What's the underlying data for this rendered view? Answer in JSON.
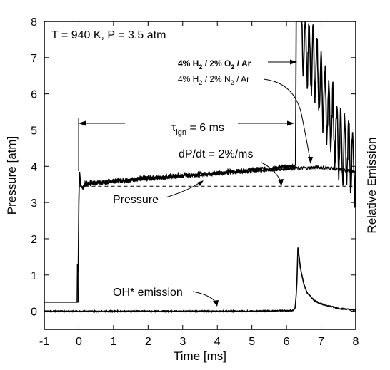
{
  "chart_data": {
    "type": "line",
    "xlabel": "Time [ms]",
    "ylabel": "Pressure [atm]",
    "ylabel_right": "Relative Emission",
    "xlim": [
      -1,
      8
    ],
    "ylim": [
      -0.5,
      8
    ],
    "x_ticks": [
      -1,
      0,
      1,
      2,
      3,
      4,
      5,
      6,
      7,
      8
    ],
    "y_ticks": [
      0,
      1,
      2,
      3,
      4,
      5,
      6,
      7,
      8
    ],
    "grid": false,
    "annotations": {
      "conditions": "T = 940 K, P = 3.5 atm",
      "mix1": {
        "a": "4% H",
        "s1": "2",
        "b": " / 2% O",
        "s2": "2",
        "c": " / Ar"
      },
      "mix2": {
        "a": "4% H",
        "s1": "2",
        "b": " / 2% N",
        "s2": "2",
        "c": " / Ar"
      },
      "tau": {
        "sym": "τ",
        "sub": "ign",
        "rest": " = 6 ms"
      },
      "dpdt": "dP/dt = 2%/ms",
      "pressure": "Pressure",
      "oh": "OH* emission"
    },
    "series": [
      {
        "x": [
          -1,
          -0.05,
          -0.04,
          -0.02,
          0.0,
          0.02,
          0.05,
          0.1,
          0.2,
          0.5,
          1,
          2,
          3,
          4,
          5,
          6,
          6.2,
          6.26,
          6.28,
          6.3,
          6.4,
          6.5,
          6.6,
          6.8,
          7.0,
          7.2,
          7.4,
          7.6,
          7.8,
          8.0
        ],
        "y": [
          0.25,
          0.25,
          1.3,
          1.1,
          3.1,
          3.85,
          3.5,
          3.4,
          3.55,
          3.55,
          3.6,
          3.68,
          3.75,
          3.82,
          3.9,
          3.98,
          4.0,
          4.05,
          8.0,
          8.0,
          8.0,
          7.5,
          7.2,
          6.8,
          6.2,
          5.5,
          5.0,
          4.6,
          4.3,
          4.0
        ]
      },
      {
        "x": [
          -1,
          -0.02,
          0.0,
          0.02,
          0.05,
          0.1,
          0.2,
          0.5,
          1,
          2,
          3,
          4,
          5,
          6,
          6.5,
          6.8,
          7.0,
          7.5,
          8.0
        ],
        "y": [
          0.25,
          0.25,
          3.0,
          3.7,
          3.45,
          3.4,
          3.5,
          3.52,
          3.57,
          3.65,
          3.73,
          3.8,
          3.87,
          3.93,
          3.95,
          3.97,
          3.97,
          3.92,
          3.85
        ]
      },
      {
        "x": [
          0.0,
          8.0
        ],
        "y": [
          3.45,
          3.45
        ]
      },
      {
        "x": [
          -1,
          1,
          3,
          5,
          6.2,
          6.25,
          6.28,
          6.3,
          6.33,
          6.36,
          6.4,
          6.5,
          6.6,
          6.8,
          7.0,
          7.5,
          8.0
        ],
        "y": [
          0.0,
          0.0,
          0.0,
          0.0,
          0.02,
          0.1,
          0.45,
          0.8,
          1.75,
          1.55,
          1.2,
          0.75,
          0.5,
          0.3,
          0.2,
          0.08,
          0.03
        ]
      }
    ]
  }
}
